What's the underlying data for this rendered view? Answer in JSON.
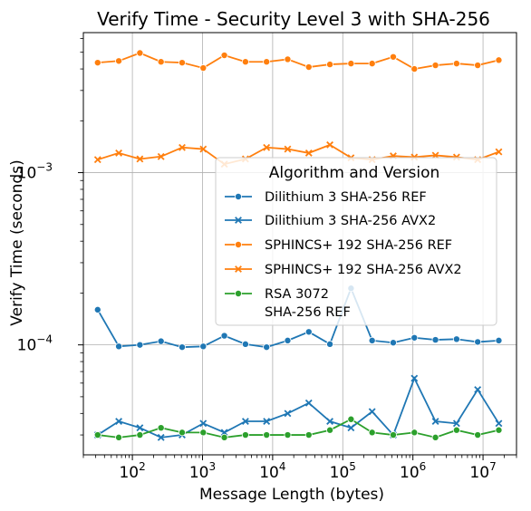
{
  "chart_data": {
    "type": "line",
    "title": "Verify Time - Security Level 3 with SHA-256",
    "xlabel": "Message Length (bytes)",
    "ylabel": "Verify Time (seconds)",
    "xscale": "log",
    "yscale": "log",
    "xlim": [
      20,
      30000000
    ],
    "ylim": [
      2.3e-05,
      0.0065
    ],
    "grid": true,
    "x_ticks": [
      {
        "value": 100,
        "base": "10",
        "exp": "2"
      },
      {
        "value": 1000,
        "base": "10",
        "exp": "3"
      },
      {
        "value": 10000,
        "base": "10",
        "exp": "4"
      },
      {
        "value": 100000,
        "base": "10",
        "exp": "5"
      },
      {
        "value": 1000000,
        "base": "10",
        "exp": "6"
      },
      {
        "value": 10000000,
        "base": "10",
        "exp": "7"
      }
    ],
    "y_ticks": [
      {
        "value": 0.0001,
        "base": "10",
        "exp": "−4"
      },
      {
        "value": 0.001,
        "base": "10",
        "exp": "−3"
      }
    ],
    "x": [
      32,
      64,
      128,
      256,
      512,
      1024,
      2048,
      4096,
      8192,
      16384,
      32768,
      65536,
      131072,
      262144,
      524288,
      1048576,
      2097152,
      4194304,
      8388608,
      16777216
    ],
    "legend": {
      "title": "Algorithm and Version",
      "position": "right"
    },
    "series": [
      {
        "name": "Dilithium 3 SHA-256 REF",
        "color": "#1f77b4",
        "marker": "circle",
        "values": [
          0.00016,
          9.8e-05,
          0.0001,
          0.000105,
          9.7e-05,
          9.8e-05,
          0.000113,
          0.000101,
          9.7e-05,
          0.000106,
          0.000119,
          0.000101,
          0.000213,
          0.000106,
          0.000103,
          0.00011,
          0.000107,
          0.000108,
          0.000104,
          0.000106
        ]
      },
      {
        "name": "Dilithium 3 SHA-256 AVX2",
        "color": "#1f77b4",
        "marker": "x",
        "values": [
          3e-05,
          3.6e-05,
          3.3e-05,
          2.9e-05,
          3e-05,
          3.5e-05,
          3.1e-05,
          3.6e-05,
          3.6e-05,
          4e-05,
          4.6e-05,
          3.6e-05,
          3.3e-05,
          4.1e-05,
          3e-05,
          6.4e-05,
          3.6e-05,
          3.5e-05,
          5.5e-05,
          3.5e-05
        ]
      },
      {
        "name": "SPHINCS+ 192 SHA-256 REF",
        "color": "#ff7f0e",
        "marker": "circle",
        "values": [
          0.00435,
          0.00445,
          0.00495,
          0.0044,
          0.00435,
          0.00405,
          0.0048,
          0.0044,
          0.0044,
          0.00455,
          0.0041,
          0.00425,
          0.0043,
          0.0043,
          0.0047,
          0.004,
          0.0042,
          0.0043,
          0.0042,
          0.0045
        ]
      },
      {
        "name": "SPHINCS+ 192 SHA-256 AVX2",
        "color": "#ff7f0e",
        "marker": "x",
        "values": [
          0.00119,
          0.0013,
          0.0012,
          0.00124,
          0.0014,
          0.00137,
          0.00112,
          0.0012,
          0.0014,
          0.00137,
          0.0013,
          0.00145,
          0.00122,
          0.00119,
          0.00125,
          0.00123,
          0.00126,
          0.00123,
          0.00119,
          0.00132
        ]
      },
      {
        "name_lines": [
          "RSA 3072",
          "SHA-256 REF"
        ],
        "color": "#2ca02c",
        "marker": "circle",
        "values": [
          3e-05,
          2.9e-05,
          3e-05,
          3.3e-05,
          3.1e-05,
          3.1e-05,
          2.9e-05,
          3e-05,
          3e-05,
          3e-05,
          3e-05,
          3.2e-05,
          3.7e-05,
          3.1e-05,
          3e-05,
          3.1e-05,
          2.9e-05,
          3.2e-05,
          3e-05,
          3.2e-05
        ]
      }
    ]
  }
}
